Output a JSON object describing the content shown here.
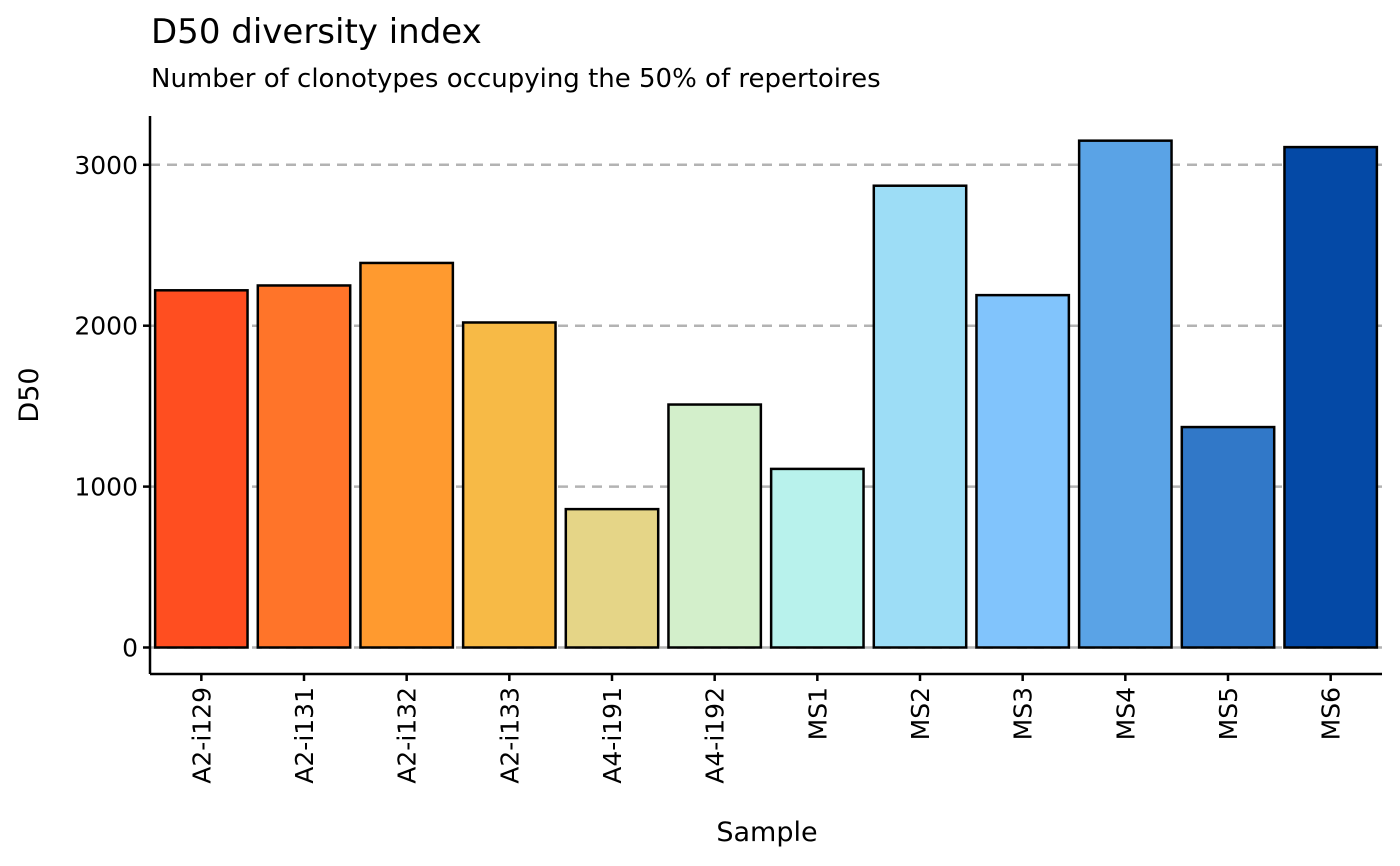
{
  "chart_data": {
    "type": "bar",
    "title": "D50 diversity index",
    "subtitle": "Number of clonotypes occupying the 50% of repertoires",
    "xlabel": "Sample",
    "ylabel": "D50",
    "categories": [
      "A2-i129",
      "A2-i131",
      "A2-i132",
      "A2-i133",
      "A4-i191",
      "A4-i192",
      "MS1",
      "MS2",
      "MS3",
      "MS4",
      "MS5",
      "MS6"
    ],
    "values": [
      2220,
      2250,
      2390,
      2020,
      860,
      1510,
      1110,
      2870,
      2190,
      3150,
      1370,
      3110
    ],
    "colors": [
      "#FF4E20",
      "#FF7429",
      "#FF9A2F",
      "#F7BA46",
      "#E5D587",
      "#D3EFCB",
      "#B8F2EC",
      "#9DDDF6",
      "#81C4FC",
      "#5AA3E6",
      "#3178C8",
      "#0449A6"
    ],
    "yticks": [
      0,
      1000,
      2000,
      3000
    ],
    "ylim": [
      -160,
      3300
    ],
    "grid": "horizontal dashed",
    "legend": "none"
  }
}
